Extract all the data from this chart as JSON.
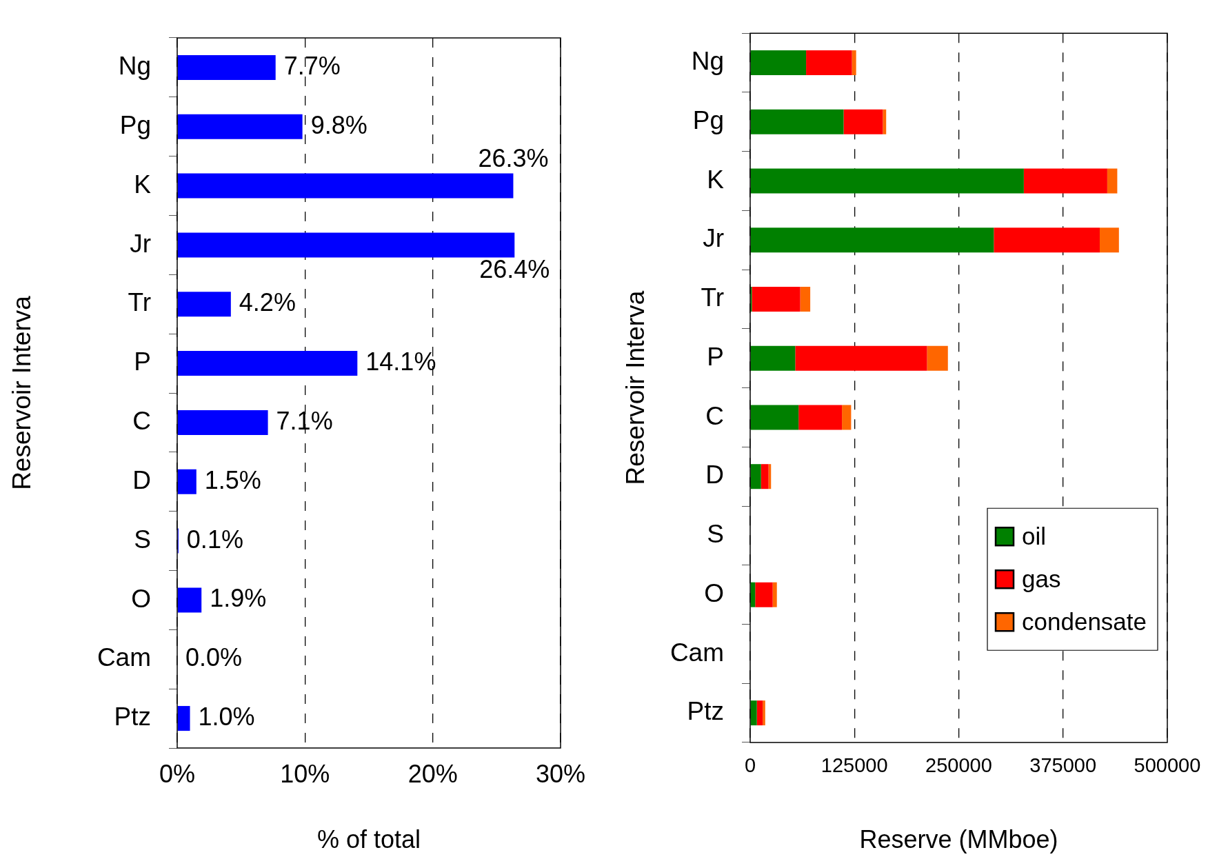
{
  "chart_data": [
    {
      "type": "bar",
      "orientation": "horizontal",
      "categories": [
        "Ng",
        "Pg",
        "K",
        "Jr",
        "Tr",
        "P",
        "C",
        "D",
        "S",
        "O",
        "Cam",
        "Ptz"
      ],
      "values": [
        7.7,
        9.8,
        26.3,
        26.4,
        4.2,
        14.1,
        7.1,
        1.5,
        0.1,
        1.9,
        0.0,
        1.0
      ],
      "color": "#0000ff",
      "value_labels": [
        "7.7%",
        "9.8%",
        "26.3%",
        "26.4%",
        "4.2%",
        "14.1%",
        "7.1%",
        "1.5%",
        "0.1%",
        "1.9%",
        "0.0%",
        "1.0%"
      ],
      "xlim": [
        0,
        30
      ],
      "xticks": [
        {
          "value": 0,
          "label": "0%"
        },
        {
          "value": 10,
          "label": "10%"
        },
        {
          "value": 20,
          "label": "20%"
        },
        {
          "value": 30,
          "label": "30%"
        }
      ],
      "xlabel": "% of total",
      "ylabel": "Reservoir Interva",
      "grid": "x"
    },
    {
      "type": "bar",
      "orientation": "horizontal",
      "stacked": true,
      "categories": [
        "Ng",
        "Pg",
        "K",
        "Jr",
        "Tr",
        "P",
        "C",
        "D",
        "S",
        "O",
        "Cam",
        "Ptz"
      ],
      "series": [
        {
          "name": "oil",
          "color": "#008000",
          "values": [
            67000,
            112000,
            328000,
            292000,
            2000,
            54000,
            58000,
            13000,
            0,
            6000,
            0,
            8000
          ]
        },
        {
          "name": "gas",
          "color": "#ff0000",
          "values": [
            55000,
            47000,
            100000,
            127000,
            58000,
            158000,
            52000,
            9000,
            0,
            21000,
            0,
            7000
          ]
        },
        {
          "name": "condensate",
          "color": "#ff6600",
          "values": [
            5000,
            4000,
            12000,
            23000,
            12000,
            25000,
            11000,
            3000,
            0,
            5000,
            0,
            3000
          ]
        }
      ],
      "xlim": [
        0,
        500000
      ],
      "xticks": [
        0,
        125000,
        250000,
        375000,
        500000
      ],
      "xlabel": "Reserve (MMboe)",
      "ylabel": "Reservoir Interva",
      "grid": "x",
      "legend": "bottom right"
    }
  ]
}
